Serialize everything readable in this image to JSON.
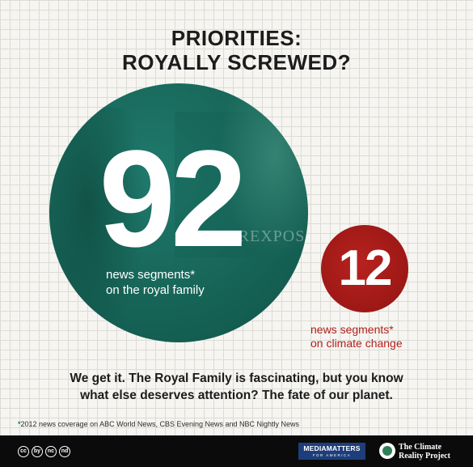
{
  "title": {
    "line1": "PRIORITIES:",
    "line2": "ROYALLY SCREWED?"
  },
  "royal": {
    "number": "92",
    "caption_line1": "news segments*",
    "caption_line2": "on the royal family",
    "photo_text": "VEREXPOS"
  },
  "climate": {
    "number": "12",
    "caption_line1": "news segments*",
    "caption_line2": "on climate change"
  },
  "tagline": {
    "line1": "We get it. The Royal Family is fascinating, but you know",
    "line2": "what else deserves attention? The fate of our planet."
  },
  "footnote": {
    "star": "*",
    "text": "2012 news coverage on ABC World News, CBS Evening News and NBC Nightly News"
  },
  "footer": {
    "cc_icons": [
      "cc",
      "by",
      "nc",
      "nd"
    ],
    "mediamatters_main": "MEDIAMATTERS",
    "mediamatters_sub": "FOR AMERICA",
    "crp_line1": "The Climate",
    "crp_line2": "Reality Project"
  },
  "colors": {
    "teal": "#166356",
    "red": "#9d1815",
    "caption_red": "#b3201c",
    "footer_bg": "#0b0b0b",
    "mediamatters_blue": "#1d3e7a"
  }
}
